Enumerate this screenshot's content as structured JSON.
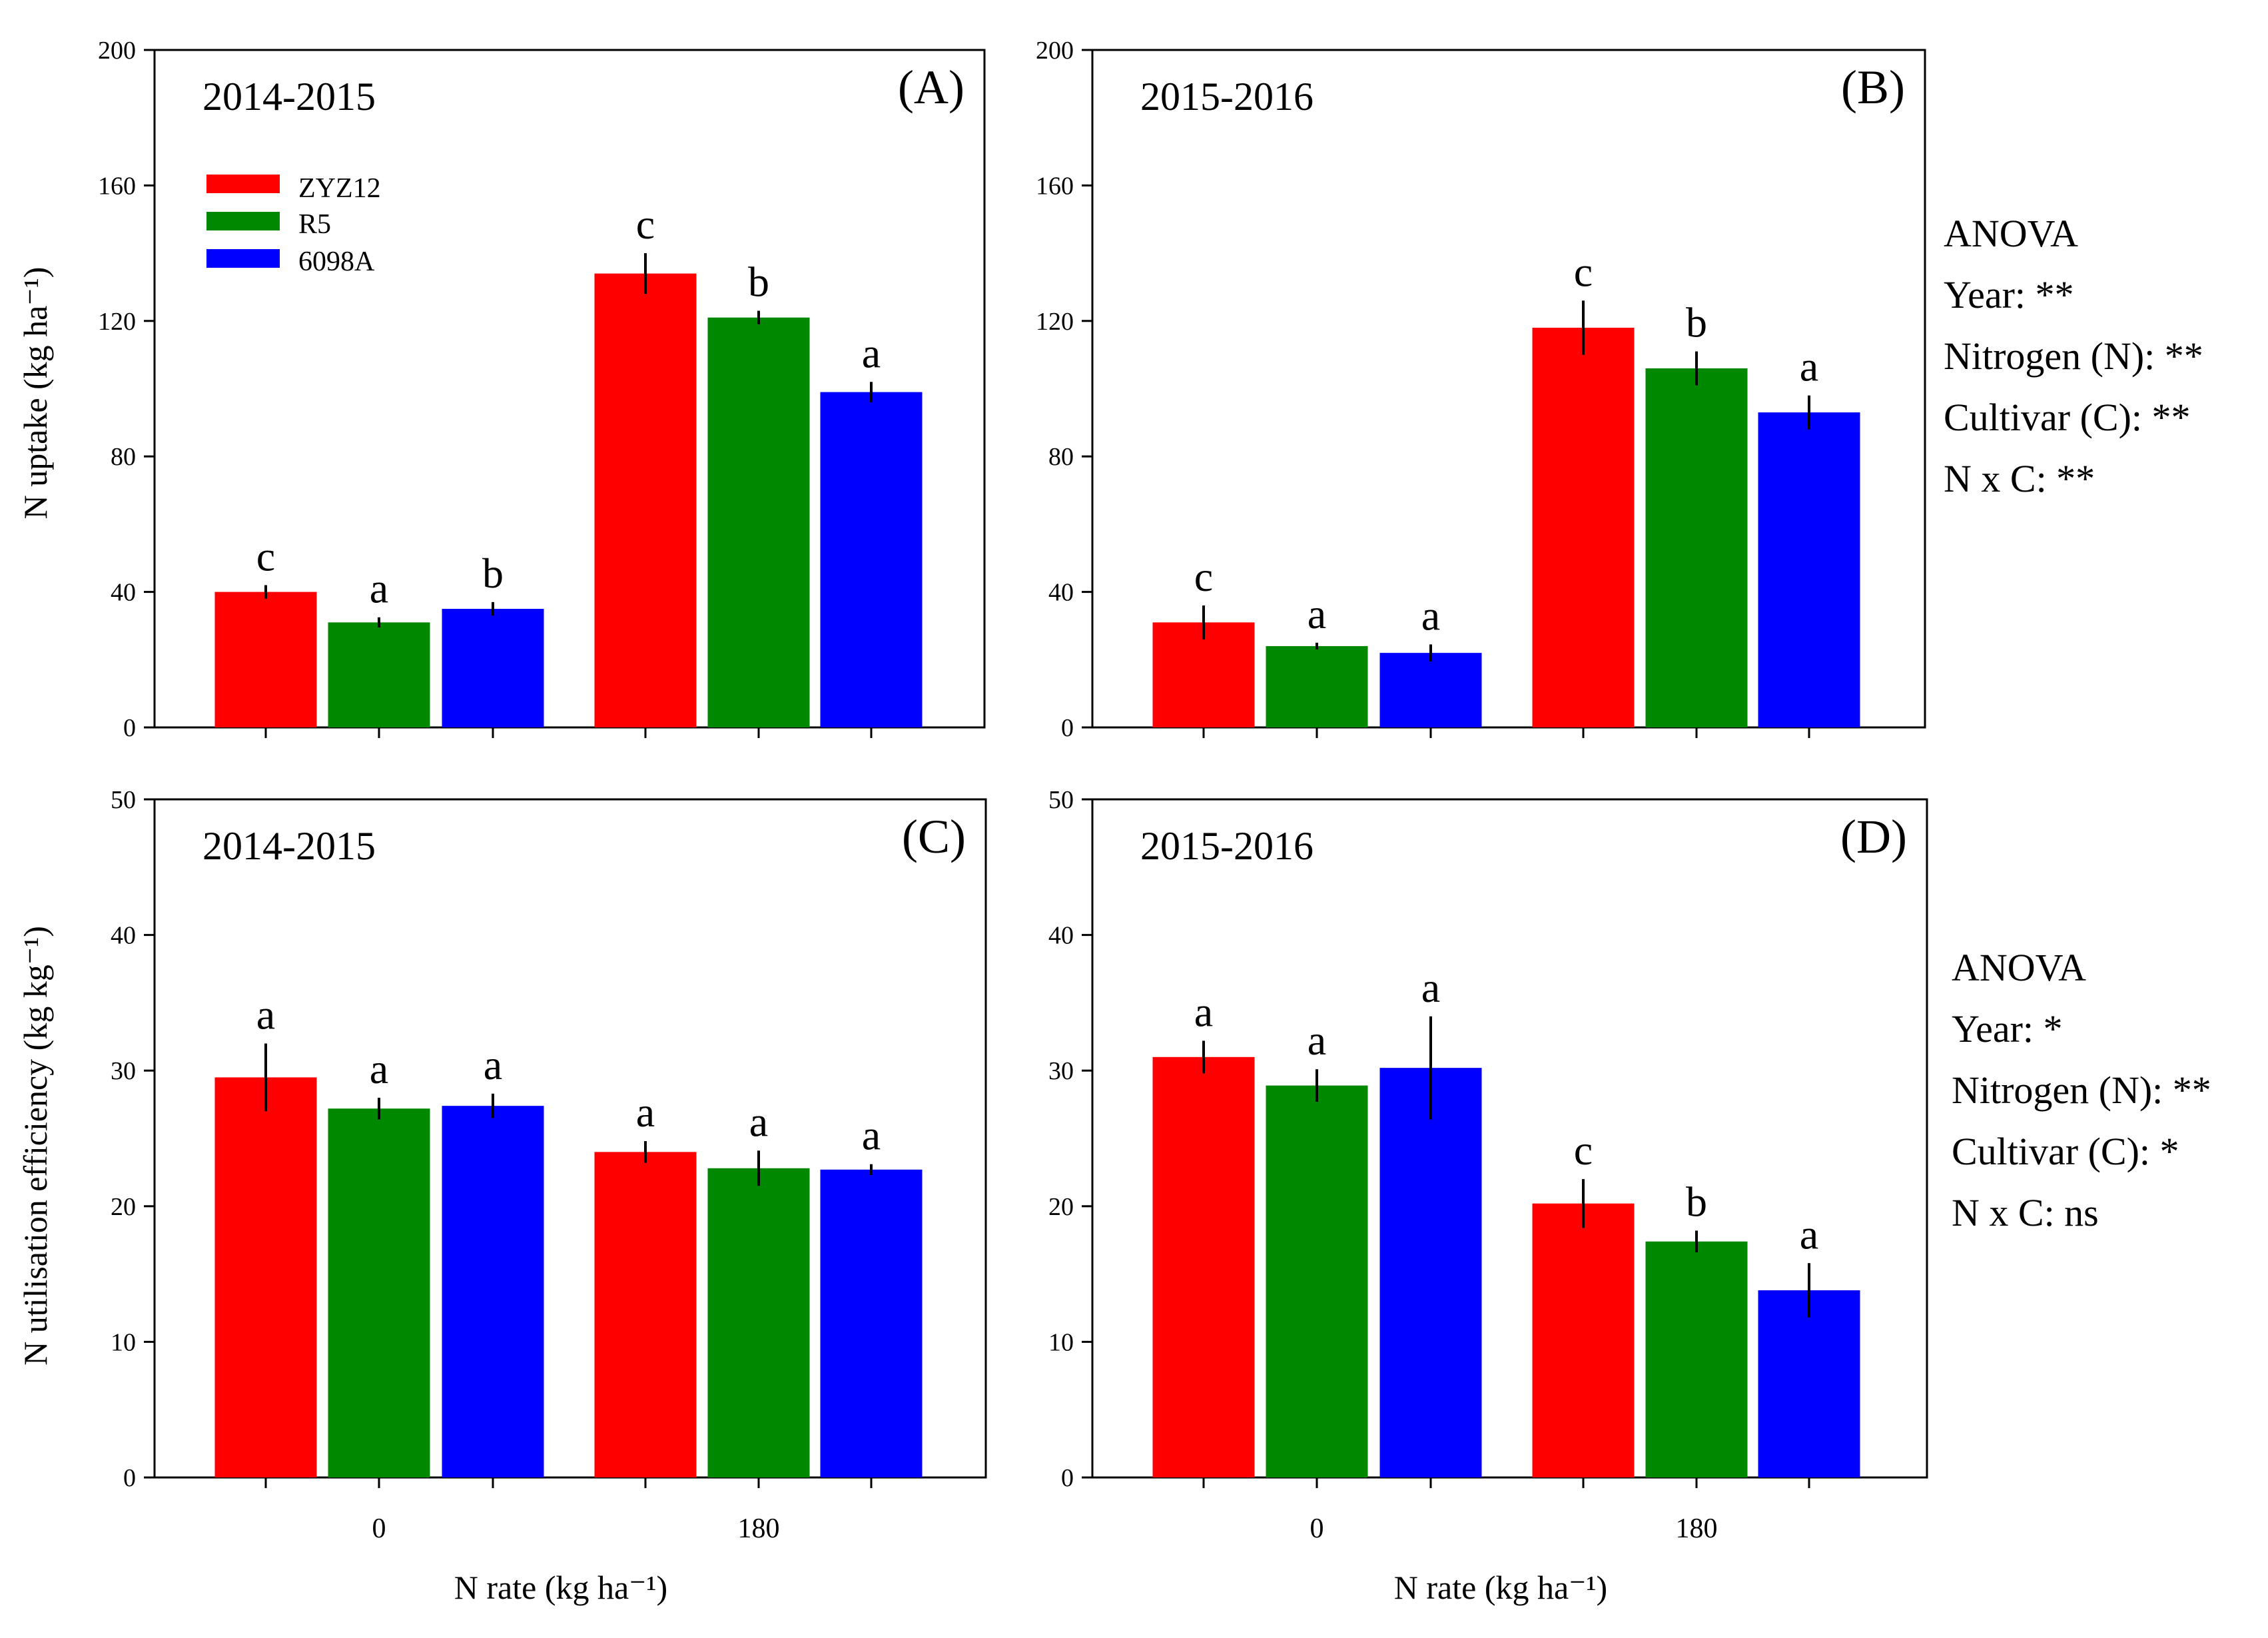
{
  "figure": {
    "colors": {
      "ZYZ12": "#ff0000",
      "R5": "#008800",
      "6098A": "#0000ff"
    },
    "legend": [
      "ZYZ12",
      "R5",
      "6098A"
    ],
    "xlabel": "N rate (kg ha⁻¹)",
    "ylabel_top": "N uptake (kg ha⁻¹)",
    "ylabel_bottom": "N utilisation efficiency (kg kg⁻¹)",
    "anova_top": [
      "ANOVA",
      "Year: **",
      "Nitrogen (N): **",
      "Cultivar (C): **",
      "N x C: **"
    ],
    "anova_bottom": [
      "ANOVA",
      "Year: *",
      "Nitrogen (N): **",
      "Cultivar (C): *",
      "N x C: ns"
    ]
  },
  "chart_data": [
    {
      "panel": "(A)",
      "year": "2014-2015",
      "type": "bar",
      "categories": [
        "0",
        "180"
      ],
      "ylim": [
        0,
        200
      ],
      "yticks": [
        0,
        40,
        80,
        120,
        160,
        200
      ],
      "ylabel": "N uptake (kg ha⁻¹)",
      "xlabel": "",
      "series": [
        {
          "name": "ZYZ12",
          "values": [
            40,
            134
          ],
          "errors": [
            2,
            6
          ],
          "letters": [
            "c",
            "c"
          ]
        },
        {
          "name": "R5",
          "values": [
            31,
            121
          ],
          "errors": [
            1.5,
            2
          ],
          "letters": [
            "a",
            "b"
          ]
        },
        {
          "name": "6098A",
          "values": [
            35,
            99
          ],
          "errors": [
            2,
            3
          ],
          "letters": [
            "b",
            "a"
          ]
        }
      ]
    },
    {
      "panel": "(B)",
      "year": "2015-2016",
      "type": "bar",
      "categories": [
        "0",
        "180"
      ],
      "ylim": [
        0,
        200
      ],
      "yticks": [
        0,
        40,
        80,
        120,
        160,
        200
      ],
      "ylabel": "",
      "xlabel": "",
      "series": [
        {
          "name": "ZYZ12",
          "values": [
            31,
            118
          ],
          "errors": [
            5,
            8
          ],
          "letters": [
            "c",
            "c"
          ]
        },
        {
          "name": "R5",
          "values": [
            24,
            106
          ],
          "errors": [
            1,
            5
          ],
          "letters": [
            "a",
            "b"
          ]
        },
        {
          "name": "6098A",
          "values": [
            22,
            93
          ],
          "errors": [
            2.5,
            5
          ],
          "letters": [
            "a",
            "a"
          ]
        }
      ]
    },
    {
      "panel": "(C)",
      "year": "2014-2015",
      "type": "bar",
      "categories": [
        "0",
        "180"
      ],
      "ylim": [
        0,
        50
      ],
      "yticks": [
        0,
        10,
        20,
        30,
        40,
        50
      ],
      "ylabel": "N utilisation efficiency (kg kg⁻¹)",
      "xlabel": "N rate (kg ha⁻¹)",
      "series": [
        {
          "name": "ZYZ12",
          "values": [
            29.5,
            24
          ],
          "errors": [
            2.5,
            0.8
          ],
          "letters": [
            "a",
            "a"
          ]
        },
        {
          "name": "R5",
          "values": [
            27.2,
            22.8
          ],
          "errors": [
            0.8,
            1.3
          ],
          "letters": [
            "a",
            "a"
          ]
        },
        {
          "name": "6098A",
          "values": [
            27.4,
            22.7
          ],
          "errors": [
            0.9,
            0.4
          ],
          "letters": [
            "a",
            "a"
          ]
        }
      ]
    },
    {
      "panel": "(D)",
      "year": "2015-2016",
      "type": "bar",
      "categories": [
        "0",
        "180"
      ],
      "ylim": [
        0,
        50
      ],
      "yticks": [
        0,
        10,
        20,
        30,
        40,
        50
      ],
      "ylabel": "",
      "xlabel": "N rate (kg ha⁻¹)",
      "series": [
        {
          "name": "ZYZ12",
          "values": [
            31,
            20.2
          ],
          "errors": [
            1.2,
            1.8
          ],
          "letters": [
            "a",
            "c"
          ]
        },
        {
          "name": "R5",
          "values": [
            28.9,
            17.4
          ],
          "errors": [
            1.2,
            0.8
          ],
          "letters": [
            "a",
            "b"
          ]
        },
        {
          "name": "6098A",
          "values": [
            30.2,
            13.8
          ],
          "errors": [
            3.8,
            2
          ],
          "letters": [
            "a",
            "a"
          ]
        }
      ]
    }
  ]
}
